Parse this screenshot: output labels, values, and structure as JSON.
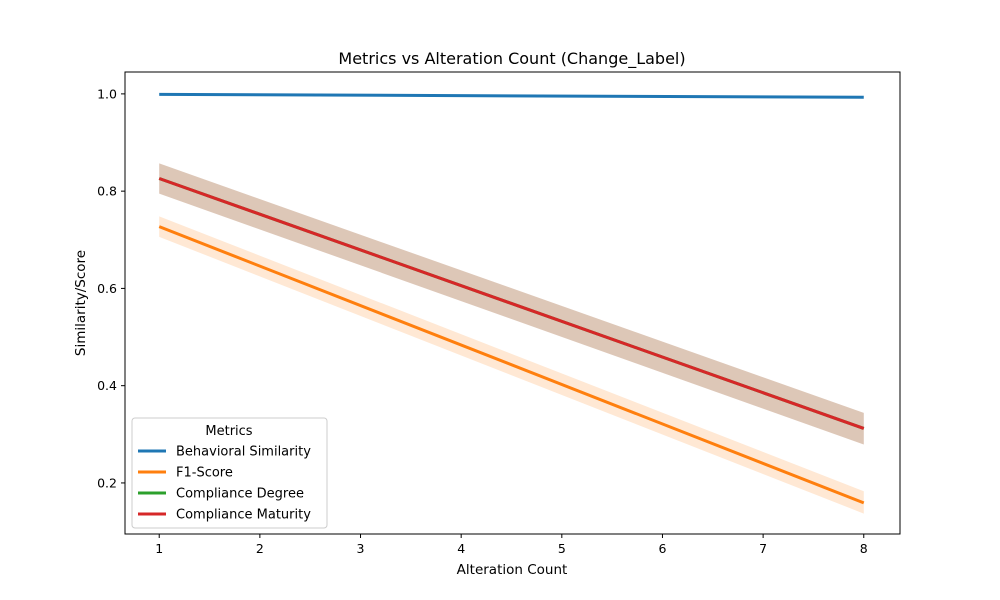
{
  "chart_data": {
    "type": "line",
    "title": "Metrics vs Alteration Count (Change_Label)",
    "xlabel": "Alteration Count",
    "ylabel": "Similarity/Score",
    "xlim": [
      0.66,
      8.36
    ],
    "ylim": [
      0.095,
      1.045
    ],
    "xticks": [
      1,
      2,
      3,
      4,
      5,
      6,
      7,
      8
    ],
    "yticks": [
      0.2,
      0.4,
      0.6,
      0.8,
      1.0
    ],
    "ytick_labels": [
      "0.2",
      "0.4",
      "0.6",
      "0.8",
      "1.0"
    ],
    "grid": false,
    "legend": {
      "title": "Metrics",
      "placement": "lower-left"
    },
    "x": [
      1,
      8
    ],
    "series": [
      {
        "name": "Behavioral Similarity",
        "color": "#1f77b4",
        "values": [
          0.999,
          0.993
        ],
        "band_low": [
          0.999,
          0.993
        ],
        "band_high": [
          0.999,
          0.993
        ]
      },
      {
        "name": "F1-Score",
        "color": "#ff7f0e",
        "values": [
          0.727,
          0.159
        ],
        "band_low": [
          0.706,
          0.137
        ],
        "band_high": [
          0.748,
          0.183
        ]
      },
      {
        "name": "Compliance Degree",
        "color": "#2ca02c",
        "values": [
          0.826,
          0.312
        ],
        "band_low": [
          0.826,
          0.312
        ],
        "band_high": [
          0.826,
          0.312
        ]
      },
      {
        "name": "Compliance Maturity",
        "color": "#d62728",
        "values": [
          0.826,
          0.312
        ],
        "band_low": [
          0.795,
          0.279
        ],
        "band_high": [
          0.857,
          0.344
        ]
      }
    ]
  }
}
